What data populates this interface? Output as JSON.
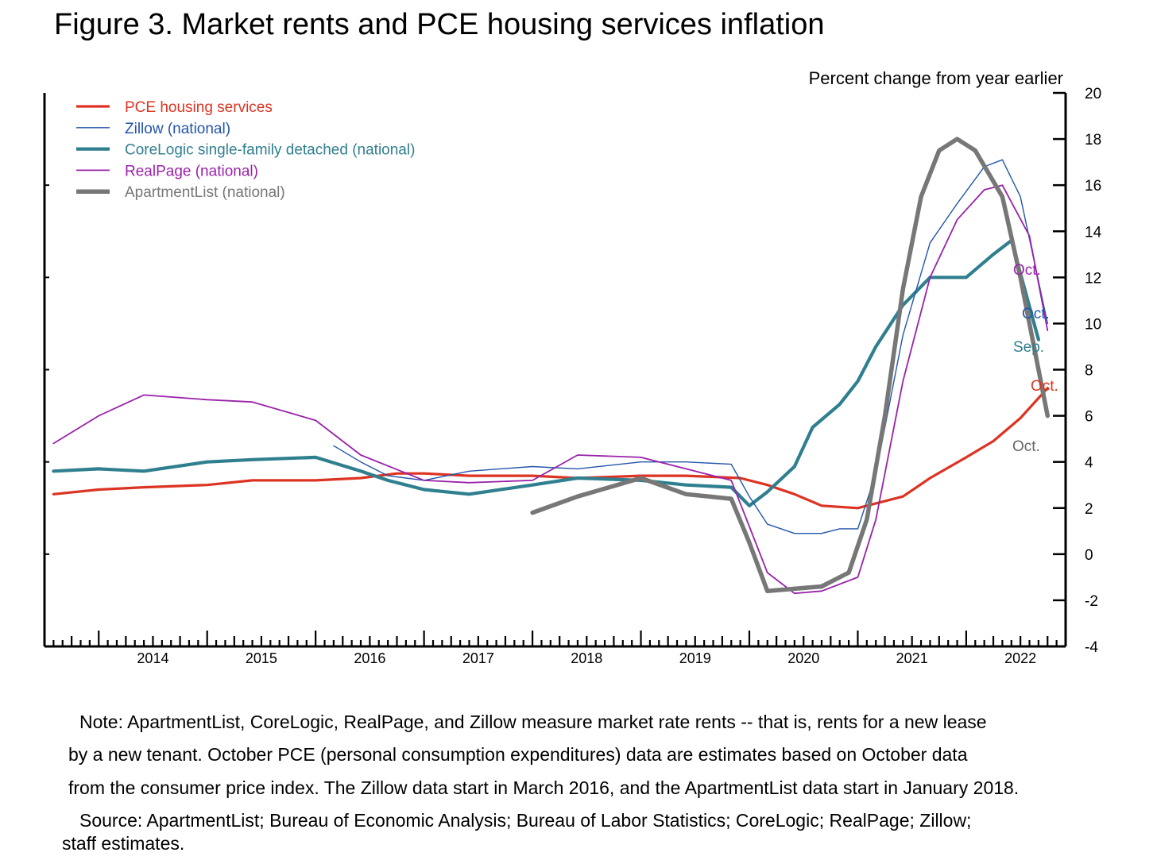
{
  "figure": {
    "title": "Figure 3. Market rents and PCE housing services inflation",
    "note_lines": [
      "Note: ApartmentList, CoreLogic, RealPage, and Zillow measure market rate rents -- that is, rents for a new lease",
      "by a new tenant. October PCE (personal consumption expenditures) data are estimates based on October data",
      "from the consumer price index. The Zillow data start in March 2016, and the ApartmentList data start in January 2018."
    ],
    "source_lines": [
      "Source: ApartmentList; Bureau of Economic Analysis; Bureau of Labor Statistics; CoreLogic; RealPage; Zillow;",
      "staff estimates."
    ]
  },
  "chart_data": {
    "type": "line",
    "title": "Figure 3. Market rents and PCE housing services inflation",
    "ylabel": "Percent change from year earlier",
    "ylim": [
      -4,
      20
    ],
    "yticks": [
      -4,
      -2,
      0,
      2,
      4,
      6,
      8,
      10,
      12,
      14,
      16,
      18,
      20
    ],
    "xlim": [
      "2013-07",
      "2022-12"
    ],
    "xtick_labels": [
      "2014",
      "2015",
      "2016",
      "2017",
      "2018",
      "2019",
      "2020",
      "2021",
      "2022"
    ],
    "legend_position": "top-left",
    "grid": false,
    "series": [
      {
        "name": "PCE housing services",
        "color": "#dd3322",
        "width": 3.2,
        "end_label": "Oct.",
        "points": [
          [
            "2013-08",
            2.6
          ],
          [
            "2014-01",
            2.8
          ],
          [
            "2014-06",
            2.9
          ],
          [
            "2015-01",
            3.0
          ],
          [
            "2015-06",
            3.2
          ],
          [
            "2016-01",
            3.2
          ],
          [
            "2016-06",
            3.3
          ],
          [
            "2016-10",
            3.5
          ],
          [
            "2017-01",
            3.5
          ],
          [
            "2017-06",
            3.4
          ],
          [
            "2018-01",
            3.4
          ],
          [
            "2018-06",
            3.3
          ],
          [
            "2019-01",
            3.4
          ],
          [
            "2019-06",
            3.4
          ],
          [
            "2019-12",
            3.3
          ],
          [
            "2020-03",
            3.0
          ],
          [
            "2020-06",
            2.6
          ],
          [
            "2020-09",
            2.1
          ],
          [
            "2021-01",
            2.0
          ],
          [
            "2021-03",
            2.2
          ],
          [
            "2021-06",
            2.5
          ],
          [
            "2021-09",
            3.3
          ],
          [
            "2022-01",
            4.2
          ],
          [
            "2022-04",
            4.9
          ],
          [
            "2022-07",
            5.9
          ],
          [
            "2022-10",
            7.2
          ]
        ]
      },
      {
        "name": "Zillow (national)",
        "color": "#2255aa",
        "width": 1.4,
        "end_label": "Oct.",
        "points": [
          [
            "2016-03",
            4.7
          ],
          [
            "2016-06",
            4.0
          ],
          [
            "2016-09",
            3.4
          ],
          [
            "2017-01",
            3.2
          ],
          [
            "2017-06",
            3.6
          ],
          [
            "2018-01",
            3.8
          ],
          [
            "2018-06",
            3.7
          ],
          [
            "2019-01",
            4.0
          ],
          [
            "2019-06",
            4.0
          ],
          [
            "2019-11",
            3.9
          ],
          [
            "2020-01",
            2.5
          ],
          [
            "2020-03",
            1.3
          ],
          [
            "2020-06",
            0.9
          ],
          [
            "2020-09",
            0.9
          ],
          [
            "2020-11",
            1.1
          ],
          [
            "2021-01",
            1.1
          ],
          [
            "2021-03",
            3.5
          ],
          [
            "2021-06",
            9.5
          ],
          [
            "2021-09",
            13.5
          ],
          [
            "2021-12",
            15.2
          ],
          [
            "2022-03",
            16.8
          ],
          [
            "2022-05",
            17.1
          ],
          [
            "2022-07",
            15.5
          ],
          [
            "2022-10",
            10.0
          ]
        ]
      },
      {
        "name": "CoreLogic single-family detached (national)",
        "color": "#2f7f8f",
        "width": 4.2,
        "end_label": "Sep.",
        "points": [
          [
            "2013-08",
            3.6
          ],
          [
            "2014-01",
            3.7
          ],
          [
            "2014-06",
            3.6
          ],
          [
            "2015-01",
            4.0
          ],
          [
            "2015-06",
            4.1
          ],
          [
            "2016-01",
            4.2
          ],
          [
            "2016-06",
            3.6
          ],
          [
            "2016-09",
            3.2
          ],
          [
            "2017-01",
            2.8
          ],
          [
            "2017-06",
            2.6
          ],
          [
            "2018-01",
            3.0
          ],
          [
            "2018-06",
            3.3
          ],
          [
            "2019-01",
            3.2
          ],
          [
            "2019-06",
            3.0
          ],
          [
            "2019-11",
            2.9
          ],
          [
            "2020-01",
            2.1
          ],
          [
            "2020-03",
            2.7
          ],
          [
            "2020-06",
            3.8
          ],
          [
            "2020-08",
            5.5
          ],
          [
            "2020-11",
            6.5
          ],
          [
            "2021-01",
            7.5
          ],
          [
            "2021-03",
            9.0
          ],
          [
            "2021-06",
            10.8
          ],
          [
            "2021-09",
            12.0
          ],
          [
            "2022-01",
            12.0
          ],
          [
            "2022-04",
            13.0
          ],
          [
            "2022-06",
            13.6
          ],
          [
            "2022-09",
            9.3
          ]
        ]
      },
      {
        "name": "RealPage (national)",
        "color": "#9922aa",
        "width": 1.8,
        "end_label": "Oct.",
        "points": [
          [
            "2013-08",
            4.8
          ],
          [
            "2014-01",
            6.0
          ],
          [
            "2014-06",
            6.9
          ],
          [
            "2015-01",
            6.7
          ],
          [
            "2015-06",
            6.6
          ],
          [
            "2016-01",
            5.8
          ],
          [
            "2016-06",
            4.3
          ],
          [
            "2017-01",
            3.2
          ],
          [
            "2017-06",
            3.1
          ],
          [
            "2018-01",
            3.2
          ],
          [
            "2018-06",
            4.3
          ],
          [
            "2019-01",
            4.2
          ],
          [
            "2019-06",
            3.7
          ],
          [
            "2019-11",
            3.2
          ],
          [
            "2020-01",
            1.2
          ],
          [
            "2020-03",
            -0.8
          ],
          [
            "2020-06",
            -1.7
          ],
          [
            "2020-09",
            -1.6
          ],
          [
            "2021-01",
            -1.0
          ],
          [
            "2021-03",
            1.5
          ],
          [
            "2021-06",
            7.5
          ],
          [
            "2021-09",
            12.0
          ],
          [
            "2021-12",
            14.5
          ],
          [
            "2022-03",
            15.8
          ],
          [
            "2022-05",
            16.0
          ],
          [
            "2022-08",
            13.8
          ],
          [
            "2022-10",
            9.7
          ]
        ]
      },
      {
        "name": "ApartmentList (national)",
        "color": "#777777",
        "width": 5.5,
        "end_label": "Oct.",
        "points": [
          [
            "2018-01",
            1.8
          ],
          [
            "2018-06",
            2.5
          ],
          [
            "2019-01",
            3.3
          ],
          [
            "2019-06",
            2.6
          ],
          [
            "2019-11",
            2.4
          ],
          [
            "2020-01",
            0.5
          ],
          [
            "2020-03",
            -1.6
          ],
          [
            "2020-06",
            -1.5
          ],
          [
            "2020-09",
            -1.4
          ],
          [
            "2020-12",
            -0.8
          ],
          [
            "2021-02",
            1.5
          ],
          [
            "2021-04",
            6.0
          ],
          [
            "2021-06",
            11.5
          ],
          [
            "2021-08",
            15.5
          ],
          [
            "2021-10",
            17.5
          ],
          [
            "2021-12",
            18.0
          ],
          [
            "2022-02",
            17.5
          ],
          [
            "2022-05",
            15.5
          ],
          [
            "2022-07",
            12.0
          ],
          [
            "2022-10",
            6.0
          ]
        ]
      }
    ]
  }
}
